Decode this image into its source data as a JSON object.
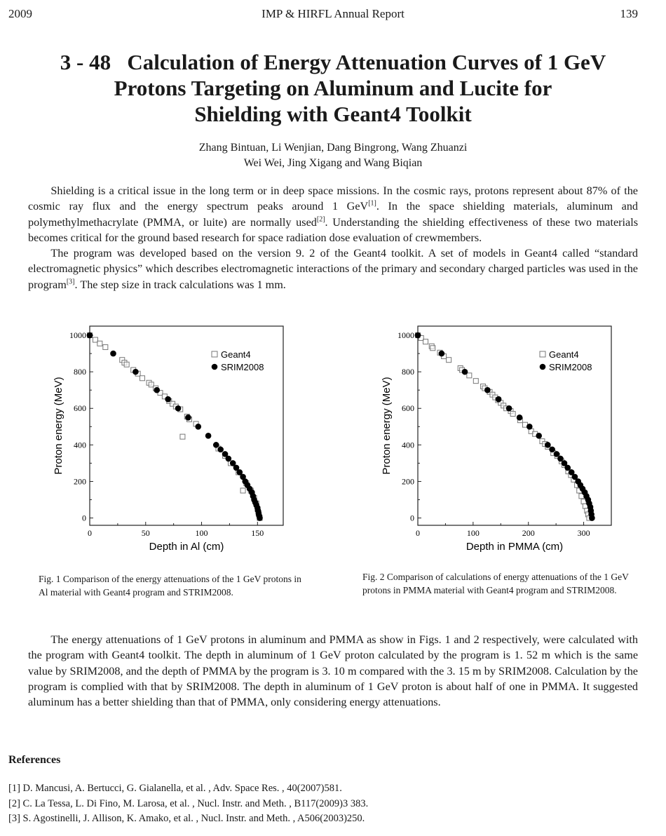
{
  "header": {
    "year": "2009",
    "journal": "IMP & HIRFL Annual Report",
    "page": "139"
  },
  "title": [
    "3 - 48   Calculation of Energy Attenuation Curves of 1 GeV",
    "Protons Targeting on Aluminum and Lucite for",
    "Shielding with Geant4 Toolkit"
  ],
  "authors": [
    "Zhang Bintuan, Li Wenjian, Dang Bingrong, Wang Zhuanzi",
    "Wei Wei, Jing Xigang and Wang Biqian"
  ],
  "paragraphs": [
    {
      "parts": [
        "Shielding is a critical issue in the long term or in deep space missions. In the cosmic rays, protons represent about 87% of the cosmic ray flux and the energy spectrum peaks around 1 GeV",
        "[1]",
        ". In the space shielding materials, aluminum and polymethylmethacrylate (PMMA, or luite) are normally used",
        "[2]",
        ". Understanding the shielding effectiveness of these two materials becomes critical for the ground based research for space radiation dose evaluation of crewmembers."
      ]
    },
    {
      "parts": [
        "The program was developed based on the version 9. 2 of the Geant4 toolkit. A set of models in Geant4 called “standard electromagnetic physics” which describes electromagnetic interactions of the primary and secondary charged particles was used in the program",
        "[3]",
        ". The step size in track calculations was 1 mm."
      ]
    },
    {
      "parts": [
        "The energy attenuations of 1 GeV protons in aluminum and PMMA as show in Figs. 1 and 2 respectively, were calculated with the program with Geant4 toolkit. The depth in aluminum of 1 GeV proton calculated by the program is 1. 52 m which is the same value by SRIM2008, and the depth of PMMA by the program is 3. 10 m compared with the 3. 15 m by SRIM2008. Calculation by the program is complied with that by SRIM2008. The depth in aluminum of 1 GeV proton is about half of one in PMMA. It suggested aluminum has a better shielding than that of PMMA, only considering energy attenuations."
      ]
    }
  ],
  "captions": [
    "Fig. 1  Comparison of the energy attenuations of the 1 GeV protons in Al material with Geant4 program and STRIM2008.",
    "Fig. 2  Comparison of calculations of energy attenuations of the 1 GeV protons in PMMA material with Geant4 program and STRIM2008."
  ],
  "references": {
    "heading": "References",
    "items": [
      "[1] D. Mancusi, A. Bertucci, G. Gialanella, et al. , Adv.  Space Res. , 40(2007)581.",
      "[2] C. La Tessa, L. Di Fino, M. Larosa, et al. , Nucl.  Instr.  and Meth. , B117(2009)3 383.",
      "[3] S. Agostinelli, J. Allison, K. Amako, et al. , Nucl.  Instr.  and Meth. , A506(2003)250."
    ]
  },
  "chart_data": [
    {
      "type": "scatter",
      "xlabel": "Depth in Al (cm)",
      "ylabel": "Proton energy (MeV)",
      "xlim": [
        0,
        173
      ],
      "ylim": [
        -40,
        1050
      ],
      "xticks": [
        0,
        50,
        100,
        150
      ],
      "yticks": [
        0,
        200,
        400,
        600,
        800,
        1000
      ],
      "grid": false,
      "legend": "top-right",
      "series": [
        {
          "name": "Geant4",
          "marker": "open-square",
          "points": [
            [
              0,
              1000
            ],
            [
              5,
              975
            ],
            [
              9,
              955
            ],
            [
              14,
              935
            ],
            [
              29,
              865
            ],
            [
              31,
              850
            ],
            [
              33,
              840
            ],
            [
              39,
              810
            ],
            [
              43,
              790
            ],
            [
              47,
              765
            ],
            [
              53,
              740
            ],
            [
              55,
              730
            ],
            [
              59,
              710
            ],
            [
              63,
              685
            ],
            [
              67,
              665
            ],
            [
              71,
              640
            ],
            [
              74,
              625
            ],
            [
              77,
              610
            ],
            [
              81,
              595
            ],
            [
              83,
              445
            ],
            [
              87,
              555
            ],
            [
              89,
              540
            ],
            [
              95,
              515
            ],
            [
              115,
              380
            ],
            [
              121,
              340
            ],
            [
              126,
              300
            ],
            [
              133,
              250
            ],
            [
              137,
              150
            ],
            [
              140,
              190
            ],
            [
              144,
              150
            ],
            [
              147,
              110
            ],
            [
              149,
              80
            ],
            [
              150,
              50
            ],
            [
              151,
              25
            ],
            [
              152,
              0
            ]
          ]
        },
        {
          "name": "SRIM2008",
          "marker": "filled-circle",
          "points": [
            [
              0,
              1000
            ],
            [
              21,
              900
            ],
            [
              41,
              800
            ],
            [
              60,
              700
            ],
            [
              70,
              650
            ],
            [
              79,
              600
            ],
            [
              88,
              550
            ],
            [
              97,
              500
            ],
            [
              106,
              450
            ],
            [
              113,
              400
            ],
            [
              117,
              375
            ],
            [
              121,
              350
            ],
            [
              124,
              325
            ],
            [
              128,
              300
            ],
            [
              131,
              275
            ],
            [
              134,
              250
            ],
            [
              137,
              225
            ],
            [
              139,
              200
            ],
            [
              141,
              180
            ],
            [
              143,
              160
            ],
            [
              145,
              140
            ],
            [
              146,
              120
            ],
            [
              147,
              100
            ],
            [
              148,
              85
            ],
            [
              149,
              70
            ],
            [
              150,
              55
            ],
            [
              150.5,
              40
            ],
            [
              151,
              25
            ],
            [
              151.5,
              12
            ],
            [
              152,
              0
            ]
          ]
        }
      ]
    },
    {
      "type": "scatter",
      "xlabel": "Depth in PMMA (cm)",
      "ylabel": "Proton energy (MeV)",
      "xlim": [
        0,
        350
      ],
      "ylim": [
        -40,
        1050
      ],
      "xticks": [
        0,
        100,
        200,
        300
      ],
      "yticks": [
        0,
        200,
        400,
        600,
        800,
        1000
      ],
      "grid": false,
      "legend": "top-right",
      "series": [
        {
          "name": "Geant4",
          "marker": "open-square",
          "points": [
            [
              0,
              1000
            ],
            [
              6,
              985
            ],
            [
              14,
              965
            ],
            [
              25,
              940
            ],
            [
              27,
              930
            ],
            [
              40,
              905
            ],
            [
              47,
              885
            ],
            [
              56,
              865
            ],
            [
              77,
              820
            ],
            [
              80,
              810
            ],
            [
              93,
              780
            ],
            [
              105,
              750
            ],
            [
              118,
              720
            ],
            [
              121,
              710
            ],
            [
              130,
              690
            ],
            [
              135,
              675
            ],
            [
              140,
              660
            ],
            [
              145,
              645
            ],
            [
              150,
              630
            ],
            [
              155,
              615
            ],
            [
              160,
              600
            ],
            [
              168,
              585
            ],
            [
              172,
              570
            ],
            [
              185,
              535
            ],
            [
              194,
              510
            ],
            [
              205,
              475
            ],
            [
              212,
              460
            ],
            [
              225,
              420
            ],
            [
              230,
              405
            ],
            [
              235,
              390
            ],
            [
              245,
              355
            ],
            [
              252,
              340
            ],
            [
              260,
              310
            ],
            [
              265,
              290
            ],
            [
              272,
              255
            ],
            [
              277,
              235
            ],
            [
              282,
              210
            ],
            [
              288,
              180
            ],
            [
              292,
              150
            ],
            [
              296,
              120
            ],
            [
              300,
              90
            ],
            [
              303,
              65
            ],
            [
              306,
              40
            ],
            [
              308,
              20
            ],
            [
              310,
              0
            ]
          ]
        },
        {
          "name": "SRIM2008",
          "marker": "filled-circle",
          "points": [
            [
              0,
              1000
            ],
            [
              43,
              900
            ],
            [
              85,
              800
            ],
            [
              126,
              700
            ],
            [
              146,
              650
            ],
            [
              165,
              600
            ],
            [
              184,
              550
            ],
            [
              202,
              500
            ],
            [
              219,
              450
            ],
            [
              235,
              400
            ],
            [
              243,
              375
            ],
            [
              251,
              350
            ],
            [
              258,
              325
            ],
            [
              265,
              300
            ],
            [
              271,
              275
            ],
            [
              278,
              250
            ],
            [
              284,
              225
            ],
            [
              290,
              200
            ],
            [
              294,
              180
            ],
            [
              298,
              160
            ],
            [
              302,
              140
            ],
            [
              305,
              120
            ],
            [
              308,
              100
            ],
            [
              310,
              80
            ],
            [
              312,
              60
            ],
            [
              313,
              40
            ],
            [
              314,
              20
            ],
            [
              315,
              0
            ]
          ]
        }
      ]
    }
  ]
}
